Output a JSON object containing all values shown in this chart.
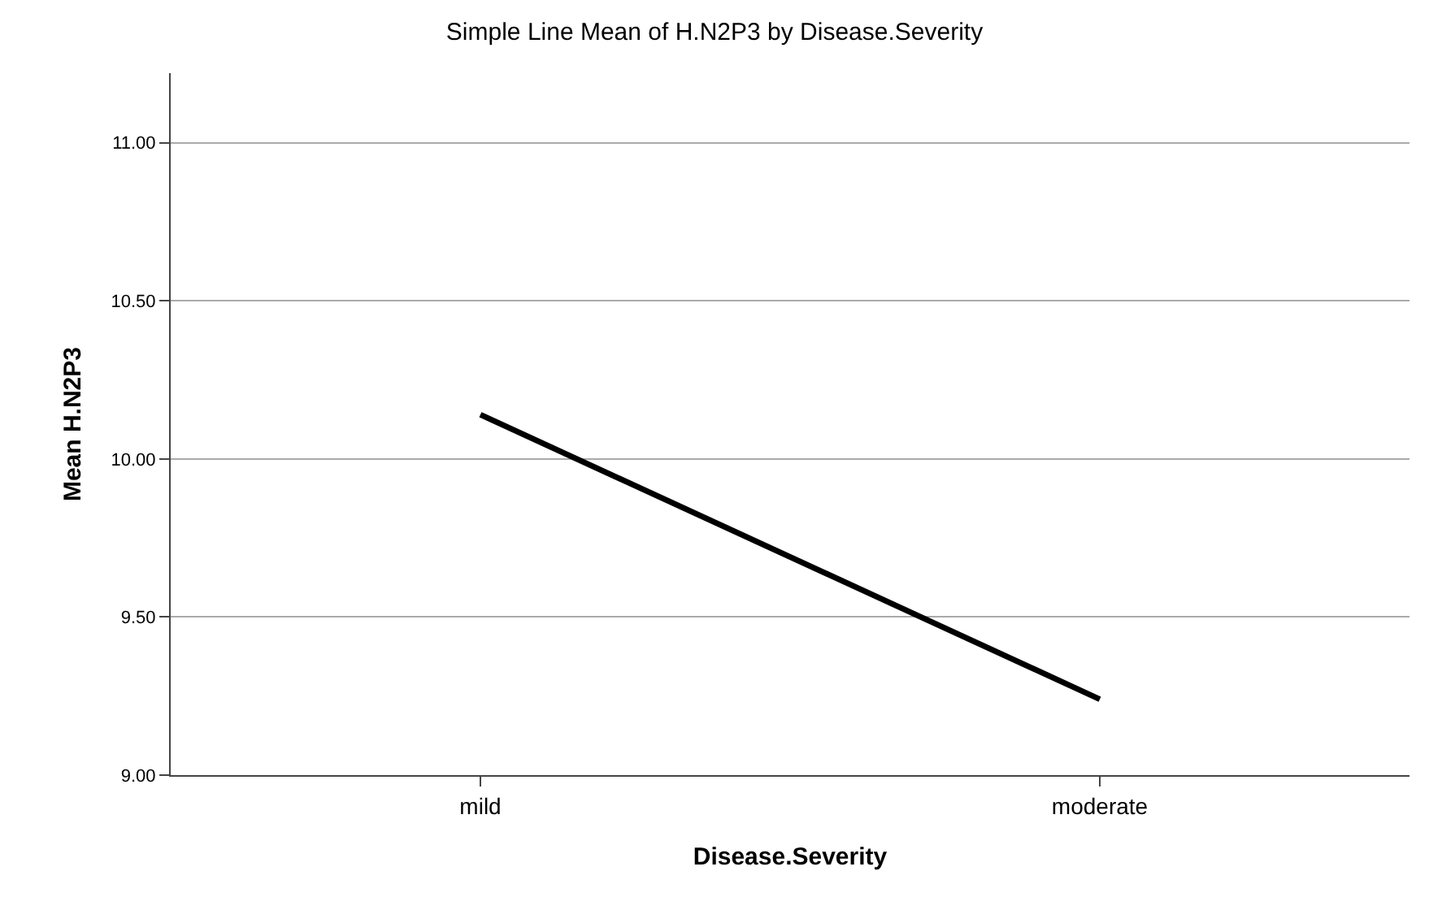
{
  "chart_data": {
    "type": "line",
    "title": "Simple Line Mean of H.N2P3 by Disease.Severity",
    "xlabel": "Disease.Severity",
    "ylabel": "Mean H.N2P3",
    "categories": [
      "mild",
      "moderate"
    ],
    "series": [
      {
        "color": "#000000",
        "values": [
          10.14,
          9.24
        ]
      }
    ],
    "ylim": [
      9.0,
      11.22
    ],
    "yticks": [
      {
        "value": 9,
        "label": "9.00"
      },
      {
        "value": 9.5,
        "label": "9.50"
      },
      {
        "value": 10,
        "label": "10.00"
      },
      {
        "value": 10.5,
        "label": "10.50"
      },
      {
        "value": 11,
        "label": "11.00"
      }
    ],
    "grid": "y",
    "marker": "none",
    "line_style": "solid"
  }
}
